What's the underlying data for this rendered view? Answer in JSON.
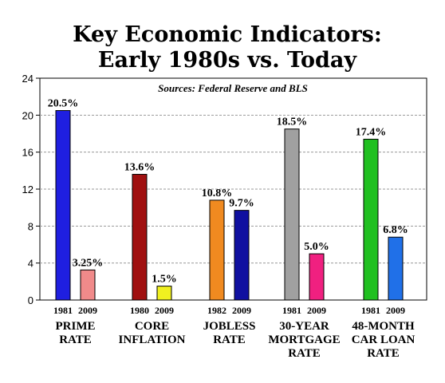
{
  "chart_data": {
    "type": "bar",
    "title_lines": [
      "Key Economic Indicators:",
      "Early 1980s vs. Today"
    ],
    "subtitle": "Sources: Federal Reserve and BLS",
    "ylim": [
      0,
      24
    ],
    "yticks": [
      0,
      4,
      8,
      12,
      16,
      20,
      24
    ],
    "grid": true,
    "groups": [
      {
        "category_lines": [
          "PRIME",
          "RATE"
        ],
        "bars": [
          {
            "year": "1981",
            "value": 20.5,
            "label": "20.5%",
            "color": "#1f1fe0"
          },
          {
            "year": "2009",
            "value": 3.25,
            "label": "3.25%",
            "color": "#f08a8a"
          }
        ]
      },
      {
        "category_lines": [
          "CORE",
          "INFLATION"
        ],
        "bars": [
          {
            "year": "1980",
            "value": 13.6,
            "label": "13.6%",
            "color": "#a01010"
          },
          {
            "year": "2009",
            "value": 1.5,
            "label": "1.5%",
            "color": "#f0f020"
          }
        ]
      },
      {
        "category_lines": [
          "JOBLESS",
          "RATE"
        ],
        "bars": [
          {
            "year": "1982",
            "value": 10.8,
            "label": "10.8%",
            "color": "#f08a20"
          },
          {
            "year": "2009",
            "value": 9.7,
            "label": "9.7%",
            "color": "#1010a0"
          }
        ]
      },
      {
        "category_lines": [
          "30-YEAR",
          "MORTGAGE",
          "RATE"
        ],
        "bars": [
          {
            "year": "1981",
            "value": 18.5,
            "label": "18.5%",
            "color": "#a0a0a0"
          },
          {
            "year": "2009",
            "value": 5.0,
            "label": "5.0%",
            "color": "#f02080"
          }
        ]
      },
      {
        "category_lines": [
          "48-MONTH",
          "CAR LOAN",
          "RATE"
        ],
        "bars": [
          {
            "year": "1981",
            "value": 17.4,
            "label": "17.4%",
            "color": "#20c020"
          },
          {
            "year": "2009",
            "value": 6.8,
            "label": "6.8%",
            "color": "#2070e8"
          }
        ]
      }
    ]
  }
}
